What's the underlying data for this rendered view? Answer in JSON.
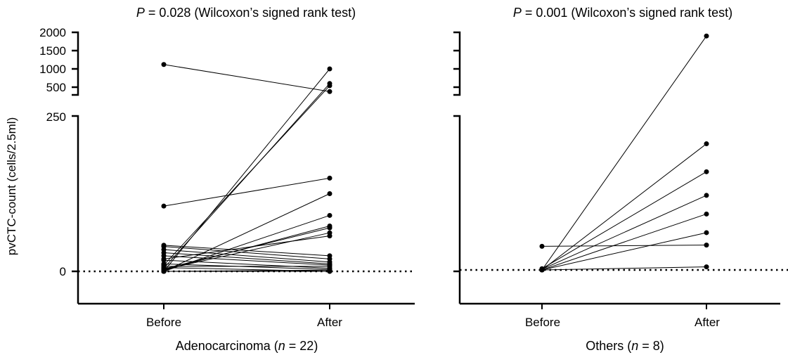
{
  "figure": {
    "ylabel": "pvCTC-count (cells/2.5ml)"
  },
  "chart_data": [
    {
      "type": "line",
      "title_pvalue": "P",
      "title_rest": " = 0.028 (Wilcoxon’s signed rank test)",
      "categories": [
        "Before",
        "After"
      ],
      "xlabel_main": "Adenocarcinoma (",
      "xlabel_italic": "n",
      "xlabel_rest": " = 22)",
      "ylabel": "pvCTC-count (cells/2.5ml)",
      "y_axis": "broken",
      "y_lower_range": [
        0,
        250
      ],
      "y_lower_ticks": [
        0,
        250
      ],
      "y_upper_range": [
        250,
        2000
      ],
      "y_upper_ticks": [
        500,
        1000,
        1500,
        2000
      ],
      "reference_line": {
        "y": 0,
        "style": "dotted"
      },
      "series": [
        {
          "before": 1120,
          "after": 380
        },
        {
          "before": 105,
          "after": 150
        },
        {
          "before": 0,
          "after": 1000
        },
        {
          "before": 5,
          "after": 600
        },
        {
          "before": 10,
          "after": 540
        },
        {
          "before": 0,
          "after": 125
        },
        {
          "before": 0,
          "after": 90
        },
        {
          "before": 2,
          "after": 73
        },
        {
          "before": 4,
          "after": 70
        },
        {
          "before": 3,
          "after": 62
        },
        {
          "before": 20,
          "after": 57
        },
        {
          "before": 42,
          "after": 25
        },
        {
          "before": 40,
          "after": 20
        },
        {
          "before": 35,
          "after": 15
        },
        {
          "before": 30,
          "after": 12
        },
        {
          "before": 25,
          "after": 10
        },
        {
          "before": 18,
          "after": 5
        },
        {
          "before": 12,
          "after": 3
        },
        {
          "before": 8,
          "after": 8
        },
        {
          "before": 6,
          "after": 0
        },
        {
          "before": 0,
          "after": 2
        },
        {
          "before": 0,
          "after": 0
        }
      ]
    },
    {
      "type": "line",
      "title_pvalue": "P",
      "title_rest": " = 0.001 (Wilcoxon’s signed rank test)",
      "categories": [
        "Before",
        "After"
      ],
      "xlabel_main": "Others (",
      "xlabel_italic": "n",
      "xlabel_rest": " = 8)",
      "y_axis": "broken",
      "y_lower_range": [
        0,
        250
      ],
      "y_upper_range": [
        250,
        2000
      ],
      "reference_line": {
        "y": 0,
        "style": "dotted"
      },
      "series": [
        {
          "before": 0,
          "after": 1900
        },
        {
          "before": 0,
          "after": 203
        },
        {
          "before": 2,
          "after": 158
        },
        {
          "before": 1,
          "after": 120
        },
        {
          "before": 0,
          "after": 90
        },
        {
          "before": 0,
          "after": 60
        },
        {
          "before": 38,
          "after": 40
        },
        {
          "before": 0,
          "after": 5
        }
      ]
    }
  ]
}
